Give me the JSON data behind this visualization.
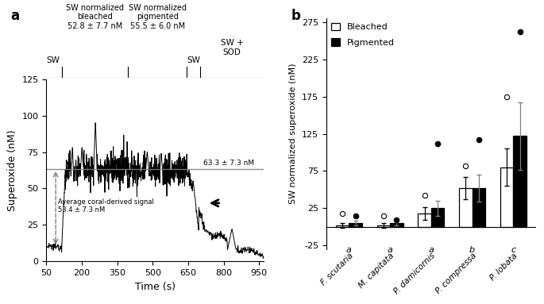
{
  "panel_a": {
    "xlabel": "Time (s)",
    "ylabel": "Superoxide (nM)",
    "xlim": [
      50,
      970
    ],
    "ylim": [
      0,
      125
    ],
    "yticks": [
      0,
      25,
      50,
      75,
      100,
      125
    ],
    "xticks": [
      50,
      200,
      350,
      500,
      650,
      800,
      950
    ],
    "horizontal_line_y": 63.3,
    "horizontal_line_label": "63.3 ± 7.3 nM",
    "coral_derived_label": "Average coral-derived signal\n53.4 ± 7.3 nM",
    "sw_start": 60,
    "bleached_start": 115,
    "bleached_end": 395,
    "pigmented_start": 395,
    "pigmented_end": 645,
    "sw2_start": 645,
    "sw2_end": 700,
    "sod_start": 700,
    "sod_end": 970,
    "segment_labels": [
      {
        "text": "SW",
        "x": 80,
        "align": "center"
      },
      {
        "text": "SW normalized\nbleached\n52.8 ± 7.7 nM",
        "x": 255,
        "align": "center"
      },
      {
        "text": "SW normalized\npigmented\n55.5 ± 6.0 nM",
        "x": 520,
        "align": "center"
      },
      {
        "text": "SW",
        "x": 672,
        "align": "center"
      },
      {
        "text": "SW +\nSOD",
        "x": 835,
        "align": "center"
      }
    ],
    "dividers": [
      115,
      395,
      645,
      700
    ]
  },
  "panel_b": {
    "ylabel": "SW normalized superoxide (nM)",
    "ylim": [
      -30,
      280
    ],
    "yticks": [
      -25,
      25,
      75,
      125,
      175,
      225,
      275
    ],
    "ytick_labels": [
      "-25",
      "25",
      "75",
      "125",
      "175",
      "225",
      "275"
    ],
    "bleached_means": [
      2,
      2,
      18,
      52,
      80
    ],
    "bleached_errors": [
      3,
      3,
      8,
      15,
      25
    ],
    "pigmented_means": [
      5,
      5,
      25,
      52,
      122
    ],
    "pigmented_errors": [
      3,
      3,
      10,
      18,
      45
    ],
    "bleached_outliers": [
      18,
      15,
      42,
      82,
      175
    ],
    "pigmented_outliers": [
      15,
      10,
      112,
      117,
      262
    ],
    "sig_labels": [
      "a",
      "a",
      "a",
      "b",
      "c"
    ],
    "bar_width": 0.32
  }
}
